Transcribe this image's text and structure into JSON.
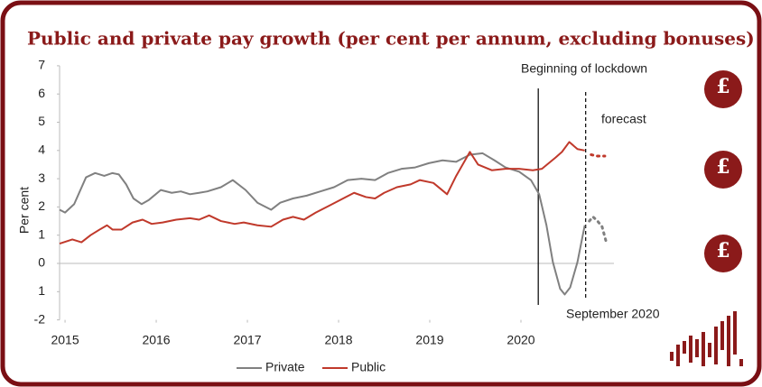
{
  "chart_data": {
    "type": "line",
    "title": "Public and private pay growth (per cent per annum, excluding bonuses)",
    "y_label": "Per cent",
    "xlim": [
      2014.94,
      2021.02
    ],
    "xticks": [
      2015,
      2016,
      2017,
      2018,
      2019,
      2020
    ],
    "ylim": [
      -2,
      7
    ],
    "yticks": [
      7,
      6,
      5,
      4,
      3,
      2,
      1,
      0,
      {
        "value": -1,
        "label": "1"
      },
      -2
    ],
    "legend": "bottom",
    "forecast_from": 2020.71,
    "annotations": [
      {
        "text": "Beginning of lockdown",
        "x": 2020.19
      },
      {
        "text": "forecast"
      },
      {
        "text": "September 2020",
        "x": 2020.71
      }
    ],
    "series": [
      {
        "name": "Private",
        "color": "#808080",
        "x": [
          2014.94,
          2015.0,
          2015.1,
          2015.23,
          2015.33,
          2015.43,
          2015.52,
          2015.59,
          2015.67,
          2015.75,
          2015.84,
          2015.92,
          2016.05,
          2016.17,
          2016.27,
          2016.37,
          2016.47,
          2016.56,
          2016.71,
          2016.84,
          2016.98,
          2017.11,
          2017.26,
          2017.36,
          2017.5,
          2017.65,
          2017.8,
          2017.95,
          2018.1,
          2018.25,
          2018.4,
          2018.54,
          2018.69,
          2018.84,
          2018.99,
          2019.14,
          2019.29,
          2019.44,
          2019.58,
          2019.71,
          2019.83,
          2019.98,
          2020.11,
          2020.2,
          2020.28,
          2020.35,
          2020.43,
          2020.48,
          2020.54,
          2020.62,
          2020.7,
          2020.75,
          2020.79,
          2020.84,
          2020.89,
          2020.94
        ],
        "values": [
          1.9,
          1.8,
          2.1,
          3.05,
          3.2,
          3.1,
          3.2,
          3.15,
          2.8,
          2.3,
          2.1,
          2.25,
          2.6,
          2.5,
          2.55,
          2.45,
          2.5,
          2.55,
          2.7,
          2.95,
          2.6,
          2.15,
          1.9,
          2.15,
          2.3,
          2.4,
          2.55,
          2.7,
          2.95,
          3.0,
          2.95,
          3.2,
          3.35,
          3.4,
          3.55,
          3.65,
          3.6,
          3.85,
          3.9,
          3.65,
          3.4,
          3.25,
          2.95,
          2.45,
          1.35,
          0.05,
          -0.9,
          -1.1,
          -0.85,
          0.05,
          1.35,
          1.5,
          1.65,
          1.5,
          1.3,
          0.7
        ]
      },
      {
        "name": "Public",
        "color": "#c0392b",
        "x": [
          2014.94,
          2015.08,
          2015.18,
          2015.28,
          2015.38,
          2015.46,
          2015.52,
          2015.62,
          2015.74,
          2015.85,
          2015.95,
          2016.07,
          2016.22,
          2016.37,
          2016.47,
          2016.58,
          2016.71,
          2016.86,
          2016.96,
          2017.11,
          2017.26,
          2017.39,
          2017.5,
          2017.62,
          2017.75,
          2017.9,
          2018.05,
          2018.17,
          2018.3,
          2018.4,
          2018.5,
          2018.64,
          2018.79,
          2018.89,
          2019.04,
          2019.19,
          2019.29,
          2019.44,
          2019.53,
          2019.68,
          2019.83,
          2019.98,
          2020.13,
          2020.23,
          2020.38,
          2020.45,
          2020.53,
          2020.62,
          2020.7,
          2020.77,
          2020.84,
          2020.92
        ],
        "values": [
          0.7,
          0.85,
          0.75,
          1.0,
          1.2,
          1.35,
          1.2,
          1.2,
          1.45,
          1.55,
          1.4,
          1.45,
          1.55,
          1.6,
          1.55,
          1.7,
          1.5,
          1.4,
          1.45,
          1.35,
          1.3,
          1.55,
          1.65,
          1.55,
          1.8,
          2.05,
          2.3,
          2.5,
          2.35,
          2.3,
          2.5,
          2.7,
          2.8,
          2.95,
          2.85,
          2.45,
          3.1,
          3.95,
          3.5,
          3.3,
          3.35,
          3.35,
          3.3,
          3.35,
          3.75,
          3.95,
          4.3,
          4.05,
          4.0,
          3.85,
          3.8,
          3.8
        ]
      }
    ]
  },
  "decorations": {
    "icon": "£"
  }
}
